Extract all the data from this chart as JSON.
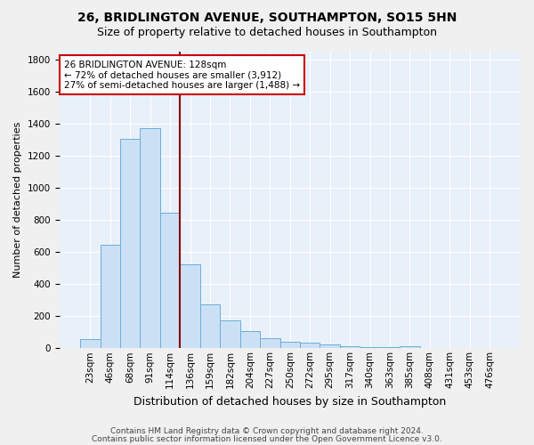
{
  "title1": "26, BRIDLINGTON AVENUE, SOUTHAMPTON, SO15 5HN",
  "title2": "Size of property relative to detached houses in Southampton",
  "xlabel": "Distribution of detached houses by size in Southampton",
  "ylabel": "Number of detached properties",
  "categories": [
    "23sqm",
    "46sqm",
    "68sqm",
    "91sqm",
    "114sqm",
    "136sqm",
    "159sqm",
    "182sqm",
    "204sqm",
    "227sqm",
    "250sqm",
    "272sqm",
    "295sqm",
    "317sqm",
    "340sqm",
    "363sqm",
    "385sqm",
    "408sqm",
    "431sqm",
    "453sqm",
    "476sqm"
  ],
  "values": [
    55,
    645,
    1305,
    1370,
    845,
    525,
    275,
    175,
    105,
    65,
    40,
    35,
    25,
    15,
    8,
    8,
    12,
    0,
    0,
    0,
    0
  ],
  "bar_color": "#cce0f5",
  "bar_edge_color": "#6aaed6",
  "fig_background_color": "#f0f0f0",
  "plot_background_color": "#e8f0fa",
  "grid_color": "#ffffff",
  "vline_color": "#8b0000",
  "vline_x_index": 5,
  "annotation_text": "26 BRIDLINGTON AVENUE: 128sqm\n← 72% of detached houses are smaller (3,912)\n27% of semi-detached houses are larger (1,488) →",
  "annotation_box_color": "#ffffff",
  "annotation_box_edge_color": "#cc0000",
  "ylim": [
    0,
    1850
  ],
  "yticks": [
    0,
    200,
    400,
    600,
    800,
    1000,
    1200,
    1400,
    1600,
    1800
  ],
  "footnote1": "Contains HM Land Registry data © Crown copyright and database right 2024.",
  "footnote2": "Contains public sector information licensed under the Open Government Licence v3.0.",
  "title1_fontsize": 10,
  "title2_fontsize": 9,
  "xlabel_fontsize": 9,
  "ylabel_fontsize": 8,
  "tick_fontsize": 7.5,
  "annotation_fontsize": 7.5,
  "footnote_fontsize": 6.5
}
